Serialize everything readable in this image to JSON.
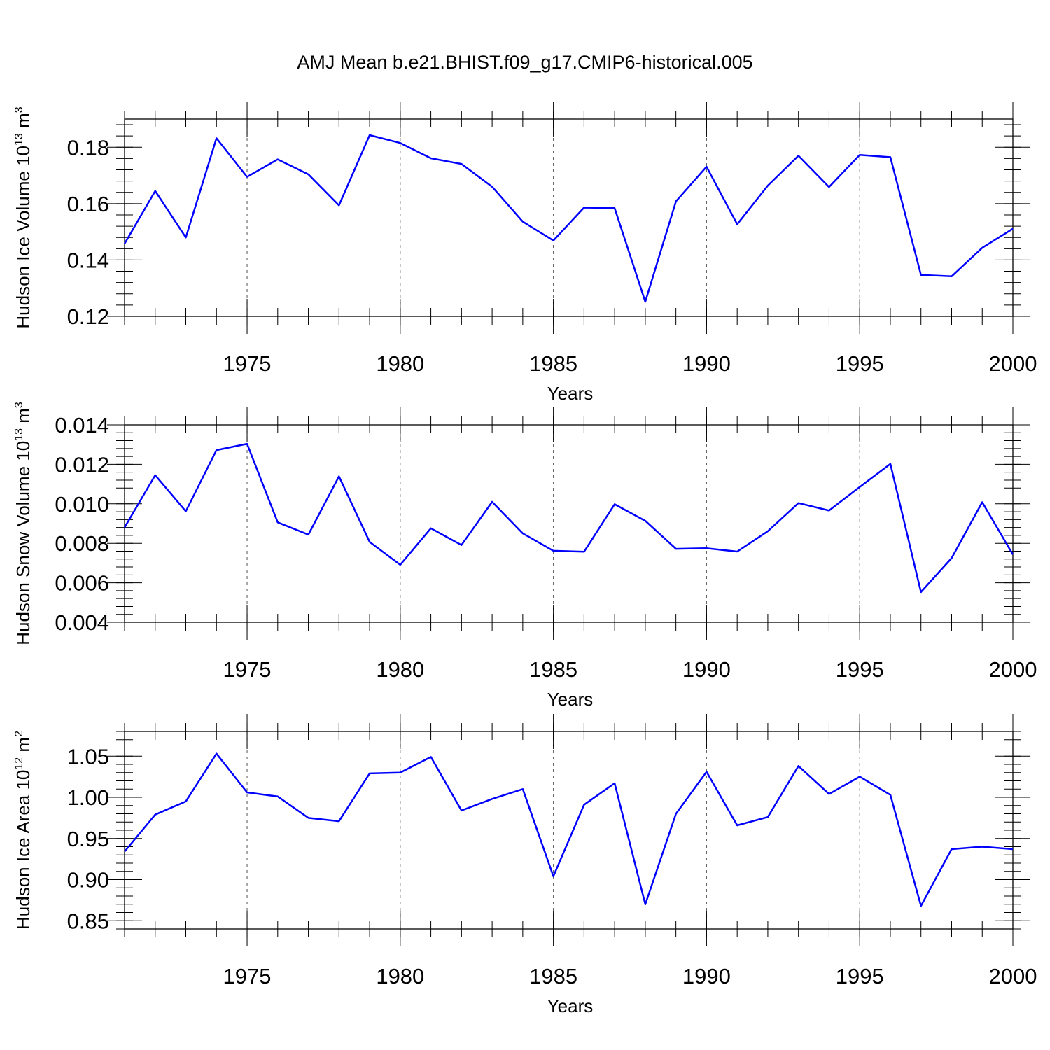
{
  "title": "AMJ Mean b.e21.BHIST.f09_g17.CMIP6-historical.005",
  "line_color": "#0000ff",
  "chart_data": [
    {
      "type": "line",
      "xlabel": "Years",
      "ylabel": {
        "prefix": "Hudson Ice Volume 10",
        "exponent": "13",
        "unit": " m",
        "unit_exponent": "3"
      },
      "xlim": [
        1971,
        2000
      ],
      "ylim": [
        0.12,
        0.19
      ],
      "x_ticks": [
        "1975",
        "1980",
        "1985",
        "1990",
        "1995",
        "2000"
      ],
      "y_ticks": [
        "0.12",
        "0.14",
        "0.16",
        "0.18"
      ],
      "x": [
        1971,
        1972,
        1973,
        1974,
        1975,
        1976,
        1977,
        1978,
        1979,
        1980,
        1981,
        1982,
        1983,
        1984,
        1985,
        1986,
        1987,
        1988,
        1989,
        1990,
        1991,
        1992,
        1993,
        1994,
        1995,
        1996,
        1997,
        1998,
        1999,
        2000
      ],
      "values": [
        0.1458,
        0.1645,
        0.148,
        0.1832,
        0.1695,
        0.1757,
        0.1704,
        0.1594,
        0.1843,
        0.1815,
        0.1761,
        0.1741,
        0.166,
        0.1536,
        0.1469,
        0.1586,
        0.1584,
        0.1252,
        0.1608,
        0.1731,
        0.1527,
        0.1664,
        0.177,
        0.1659,
        0.1773,
        0.1765,
        0.1347,
        0.1342,
        0.1443,
        0.1511
      ]
    },
    {
      "type": "line",
      "xlabel": "Years",
      "ylabel": {
        "prefix": "Hudson Snow Volume 10",
        "exponent": "13",
        "unit": " m",
        "unit_exponent": "3"
      },
      "xlim": [
        1971,
        2000
      ],
      "ylim": [
        0.004,
        0.014
      ],
      "x_ticks": [
        "1975",
        "1980",
        "1985",
        "1990",
        "1995",
        "2000"
      ],
      "y_ticks": [
        "0.004",
        "0.006",
        "0.008",
        "0.010",
        "0.012",
        "0.014"
      ],
      "x": [
        1971,
        1972,
        1973,
        1974,
        1975,
        1976,
        1977,
        1978,
        1979,
        1980,
        1981,
        1982,
        1983,
        1984,
        1985,
        1986,
        1987,
        1988,
        1989,
        1990,
        1991,
        1992,
        1993,
        1994,
        1995,
        1996,
        1997,
        1998,
        1999,
        2000
      ],
      "values": [
        0.0088,
        0.01145,
        0.00962,
        0.01272,
        0.01304,
        0.00906,
        0.00844,
        0.01139,
        0.00807,
        0.00691,
        0.00876,
        0.00791,
        0.0101,
        0.0085,
        0.00762,
        0.00757,
        0.00998,
        0.00914,
        0.00772,
        0.00775,
        0.00758,
        0.00861,
        0.01004,
        0.00966,
        0.01085,
        0.01202,
        0.00553,
        0.00725,
        0.01008,
        0.00743
      ]
    },
    {
      "type": "line",
      "xlabel": "Years",
      "ylabel": {
        "prefix": "Hudson Ice Area 10",
        "exponent": "12",
        "unit": " m",
        "unit_exponent": "2"
      },
      "xlim": [
        1971,
        2000
      ],
      "ylim": [
        0.84,
        1.08
      ],
      "x_ticks": [
        "1975",
        "1980",
        "1985",
        "1990",
        "1995",
        "2000"
      ],
      "y_ticks": [
        "0.85",
        "0.90",
        "0.95",
        "1.00",
        "1.05"
      ],
      "x": [
        1971,
        1972,
        1973,
        1974,
        1975,
        1976,
        1977,
        1978,
        1979,
        1980,
        1981,
        1982,
        1983,
        1984,
        1985,
        1986,
        1987,
        1988,
        1989,
        1990,
        1991,
        1992,
        1993,
        1994,
        1995,
        1996,
        1997,
        1998,
        1999,
        2000
      ],
      "values": [
        0.934,
        0.979,
        0.995,
        1.053,
        1.006,
        1.001,
        0.975,
        0.971,
        1.029,
        1.03,
        1.049,
        0.984,
        0.998,
        1.01,
        0.904,
        0.991,
        1.017,
        0.87,
        0.98,
        1.031,
        0.966,
        0.976,
        1.038,
        1.004,
        1.025,
        1.003,
        0.868,
        0.937,
        0.94,
        0.937
      ]
    }
  ]
}
